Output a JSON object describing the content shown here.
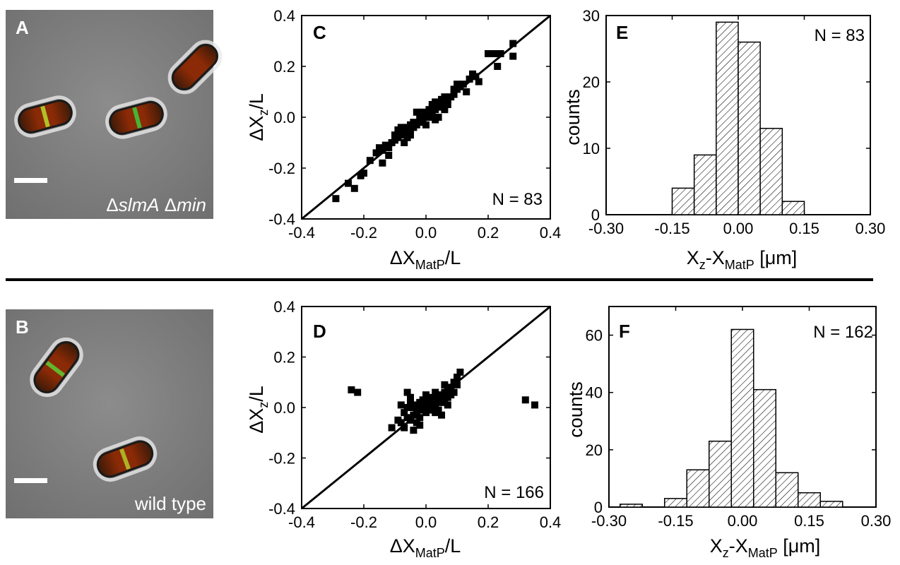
{
  "chart_data": [
    {
      "panel": "A",
      "type": "image",
      "caption_part1": "Δ",
      "caption_part2": "slmA",
      "caption_part3": " Δ",
      "caption_part4": "min"
    },
    {
      "panel": "B",
      "type": "image",
      "caption": "wild type"
    },
    {
      "panel": "C",
      "type": "scatter",
      "xlabel_main": "ΔX",
      "xlabel_sub": "MatP",
      "xlabel_tail": "/L",
      "ylabel_main": "ΔX",
      "ylabel_sub": "z",
      "ylabel_tail": "/L",
      "xlim": [
        -0.4,
        0.4
      ],
      "ylim": [
        -0.4,
        0.4
      ],
      "xticks": [
        "-0.4",
        "-0.2",
        "0.0",
        "0.2",
        "0.4"
      ],
      "yticks": [
        "-0.4",
        "-0.2",
        "0.0",
        "0.2",
        "0.4"
      ],
      "annotation": "N = 83",
      "line": [
        [
          -0.4,
          -0.4
        ],
        [
          0.4,
          0.4
        ]
      ],
      "points": [
        [
          -0.29,
          -0.32
        ],
        [
          -0.25,
          -0.26
        ],
        [
          -0.23,
          -0.28
        ],
        [
          -0.21,
          -0.23
        ],
        [
          -0.2,
          -0.22
        ],
        [
          -0.18,
          -0.17
        ],
        [
          -0.16,
          -0.14
        ],
        [
          -0.15,
          -0.12
        ],
        [
          -0.14,
          -0.13
        ],
        [
          -0.14,
          -0.18
        ],
        [
          -0.13,
          -0.11
        ],
        [
          -0.12,
          -0.12
        ],
        [
          -0.11,
          -0.1
        ],
        [
          -0.1,
          -0.09
        ],
        [
          -0.1,
          -0.07
        ],
        [
          -0.09,
          -0.08
        ],
        [
          -0.09,
          -0.05
        ],
        [
          -0.08,
          -0.07
        ],
        [
          -0.07,
          -0.06
        ],
        [
          -0.07,
          -0.1
        ],
        [
          -0.06,
          -0.04
        ],
        [
          -0.06,
          -0.08
        ],
        [
          -0.05,
          -0.05
        ],
        [
          -0.05,
          -0.03
        ],
        [
          -0.04,
          -0.04
        ],
        [
          -0.04,
          -0.02
        ],
        [
          -0.03,
          -0.03
        ],
        [
          -0.02,
          -0.02
        ],
        [
          -0.02,
          0.0
        ],
        [
          -0.01,
          -0.01
        ],
        [
          -0.01,
          0.02
        ],
        [
          0.0,
          0.0
        ],
        [
          0.0,
          0.01
        ],
        [
          0.01,
          0.0
        ],
        [
          0.01,
          0.03
        ],
        [
          0.02,
          0.01
        ],
        [
          0.02,
          0.04
        ],
        [
          0.03,
          0.03
        ],
        [
          0.03,
          0.06
        ],
        [
          0.04,
          0.04
        ],
        [
          0.04,
          0.0
        ],
        [
          0.05,
          0.05
        ],
        [
          0.05,
          0.07
        ],
        [
          0.06,
          0.06
        ],
        [
          0.06,
          0.03
        ],
        [
          0.07,
          0.07
        ],
        [
          0.07,
          0.05
        ],
        [
          0.08,
          0.08
        ],
        [
          0.09,
          0.09
        ],
        [
          0.1,
          0.11
        ],
        [
          0.1,
          0.13
        ],
        [
          0.11,
          0.12
        ],
        [
          0.12,
          0.13
        ],
        [
          0.13,
          0.1
        ],
        [
          0.14,
          0.15
        ],
        [
          0.15,
          0.17
        ],
        [
          0.16,
          0.16
        ],
        [
          0.17,
          0.14
        ],
        [
          0.2,
          0.25
        ],
        [
          0.22,
          0.25
        ],
        [
          0.23,
          0.2
        ],
        [
          0.24,
          0.25
        ],
        [
          0.28,
          0.24
        ],
        [
          0.28,
          0.29
        ],
        [
          -0.03,
          0.02
        ],
        [
          0.0,
          -0.03
        ],
        [
          0.03,
          -0.01
        ],
        [
          -0.08,
          -0.04
        ],
        [
          0.06,
          0.08
        ],
        [
          -0.12,
          -0.15
        ],
        [
          0.09,
          0.11
        ],
        [
          -0.05,
          -0.07
        ],
        [
          0.02,
          0.05
        ]
      ]
    },
    {
      "panel": "D",
      "type": "scatter",
      "xlabel_main": "ΔX",
      "xlabel_sub": "MatP",
      "xlabel_tail": "/L",
      "ylabel_main": "ΔX",
      "ylabel_sub": "z",
      "ylabel_tail": "/L",
      "xlim": [
        -0.4,
        0.4
      ],
      "ylim": [
        -0.4,
        0.4
      ],
      "xticks": [
        "-0.4",
        "-0.2",
        "0.0",
        "0.2",
        "0.4"
      ],
      "yticks": [
        "-0.4",
        "-0.2",
        "0.0",
        "0.2",
        "0.4"
      ],
      "annotation": "N = 166",
      "line": [
        [
          -0.4,
          -0.4
        ],
        [
          0.4,
          0.4
        ]
      ],
      "points": [
        [
          -0.24,
          0.07
        ],
        [
          -0.22,
          0.06
        ],
        [
          0.32,
          0.03
        ],
        [
          0.35,
          0.01
        ],
        [
          -0.11,
          -0.08
        ],
        [
          -0.08,
          -0.06
        ],
        [
          -0.07,
          -0.02
        ],
        [
          -0.07,
          -0.08
        ],
        [
          -0.06,
          -0.04
        ],
        [
          -0.06,
          0.0
        ],
        [
          -0.05,
          -0.05
        ],
        [
          -0.05,
          0.04
        ],
        [
          -0.05,
          0.02
        ],
        [
          -0.04,
          -0.03
        ],
        [
          -0.04,
          0.0
        ],
        [
          -0.04,
          -0.09
        ],
        [
          -0.03,
          -0.02
        ],
        [
          -0.03,
          0.01
        ],
        [
          -0.03,
          -0.06
        ],
        [
          -0.02,
          0.0
        ],
        [
          -0.02,
          0.02
        ],
        [
          -0.02,
          -0.04
        ],
        [
          -0.01,
          0.01
        ],
        [
          -0.01,
          -0.01
        ],
        [
          -0.01,
          0.03
        ],
        [
          0.0,
          0.0
        ],
        [
          0.0,
          0.02
        ],
        [
          0.0,
          -0.02
        ],
        [
          0.01,
          0.01
        ],
        [
          0.01,
          0.03
        ],
        [
          0.01,
          -0.01
        ],
        [
          0.02,
          0.02
        ],
        [
          0.02,
          0.0
        ],
        [
          0.02,
          0.04
        ],
        [
          0.03,
          0.03
        ],
        [
          0.03,
          0.01
        ],
        [
          0.03,
          -0.02
        ],
        [
          0.04,
          0.04
        ],
        [
          0.04,
          0.02
        ],
        [
          0.05,
          0.05
        ],
        [
          0.05,
          0.03
        ],
        [
          0.05,
          -0.03
        ],
        [
          0.06,
          0.06
        ],
        [
          0.06,
          0.02
        ],
        [
          0.07,
          0.07
        ],
        [
          0.07,
          0.04
        ],
        [
          0.08,
          0.08
        ],
        [
          0.08,
          0.05
        ],
        [
          0.09,
          0.1
        ],
        [
          0.09,
          0.06
        ],
        [
          0.1,
          0.09
        ],
        [
          0.11,
          0.14
        ],
        [
          0.1,
          0.12
        ],
        [
          -0.06,
          0.06
        ],
        [
          -0.08,
          0.01
        ],
        [
          0.0,
          0.05
        ],
        [
          0.03,
          0.06
        ],
        [
          0.06,
          0.09
        ],
        [
          -0.02,
          -0.07
        ],
        [
          0.04,
          -0.01
        ],
        [
          -0.09,
          -0.05
        ],
        [
          0.07,
          0.01
        ]
      ]
    },
    {
      "panel": "E",
      "type": "bar",
      "xlabel_main": "X",
      "xlabel_sub1": "z",
      "xlabel_mid": "-X",
      "xlabel_sub2": "MatP",
      "xlabel_tail": " [μm]",
      "ylabel": "counts",
      "xlim": [
        -0.3,
        0.3
      ],
      "ylim": [
        0,
        30
      ],
      "xticks": [
        "-0.30",
        "-0.15",
        "0.00",
        "0.15",
        "0.30"
      ],
      "yticks": [
        "0",
        "10",
        "20",
        "30"
      ],
      "annotation": "N = 83",
      "bin_edges": [
        -0.15,
        -0.1,
        -0.05,
        0.0,
        0.05,
        0.1,
        0.15
      ],
      "counts": [
        4,
        9,
        29,
        26,
        13,
        2
      ]
    },
    {
      "panel": "F",
      "type": "bar",
      "xlabel_main": "X",
      "xlabel_sub1": "z",
      "xlabel_mid": "-X",
      "xlabel_sub2": "MatP",
      "xlabel_tail": " [μm]",
      "ylabel": "counts",
      "xlim": [
        -0.3,
        0.3
      ],
      "ylim": [
        0,
        70
      ],
      "xticks": [
        "-0.30",
        "-0.15",
        "0.00",
        "0.15",
        "0.30"
      ],
      "yticks": [
        "0",
        "20",
        "40",
        "60"
      ],
      "annotation": "N = 162",
      "bin_edges": [
        -0.275,
        -0.225,
        -0.175,
        -0.125,
        -0.075,
        -0.025,
        0.025,
        0.075,
        0.125,
        0.175,
        0.225
      ],
      "counts": [
        1,
        0,
        3,
        13,
        23,
        62,
        41,
        12,
        5,
        2
      ]
    }
  ]
}
